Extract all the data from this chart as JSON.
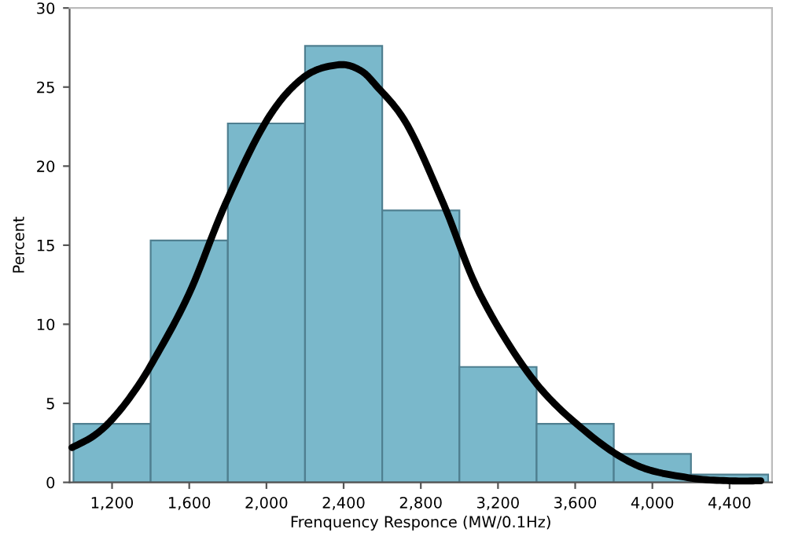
{
  "chart_data": {
    "type": "histogram",
    "xlabel": "Frenquency Responce (MW/0.1Hz)",
    "ylabel": "Percent",
    "bins": [
      1000,
      1400,
      1800,
      2200,
      2600,
      3000,
      3400,
      3800,
      4200,
      4600
    ],
    "values": [
      3.7,
      15.3,
      22.7,
      27.6,
      17.2,
      7.3,
      3.7,
      1.8,
      0.5
    ],
    "color": "#7ab8cb",
    "series": [
      {
        "type": "line",
        "color": "#000000",
        "x": [
          992,
          1100,
          1194,
          1300,
          1410,
          1598,
          1787,
          2002,
          2191,
          2366,
          2480,
          2568,
          2730,
          2918,
          3107,
          3376,
          3646,
          3915,
          4184,
          4400,
          4562
        ],
        "values": [
          2.2,
          2.9,
          3.9,
          5.5,
          7.6,
          11.9,
          17.6,
          22.9,
          25.6,
          26.4,
          26.1,
          25.1,
          22.6,
          17.6,
          11.9,
          6.6,
          3.3,
          1.1,
          0.3,
          0.1,
          0.1
        ]
      }
    ],
    "xlim": [
      980,
      4620
    ],
    "ylim": [
      0,
      30
    ],
    "xticks": [
      {
        "value": 1200,
        "label": "1,200"
      },
      {
        "value": 1600,
        "label": "1,600"
      },
      {
        "value": 2000,
        "label": "2,000"
      },
      {
        "value": 2400,
        "label": "2,400"
      },
      {
        "value": 2800,
        "label": "2,800"
      },
      {
        "value": 3200,
        "label": "3,200"
      },
      {
        "value": 3600,
        "label": "3,600"
      },
      {
        "value": 4000,
        "label": "4,000"
      },
      {
        "value": 4400,
        "label": "4,400"
      }
    ],
    "yticks": [
      0,
      5,
      10,
      15,
      20,
      25,
      30
    ],
    "grid": false,
    "legend": false
  }
}
